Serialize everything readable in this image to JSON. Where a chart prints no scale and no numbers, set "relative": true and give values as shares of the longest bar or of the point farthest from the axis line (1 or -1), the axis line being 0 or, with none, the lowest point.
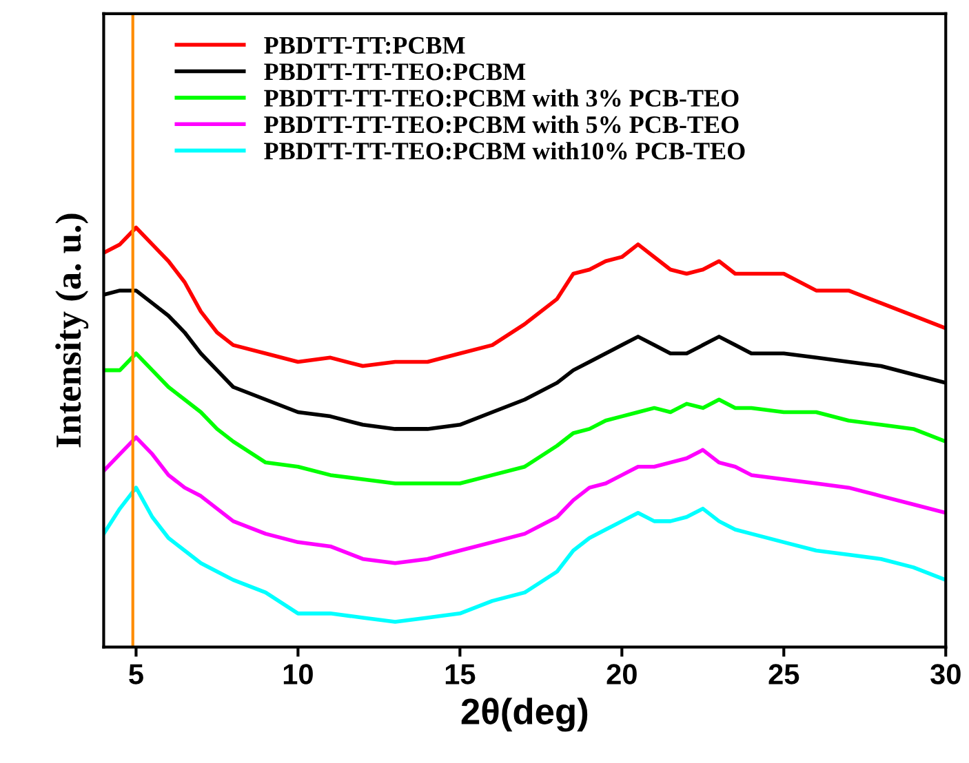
{
  "chart_data": {
    "type": "line",
    "relative": true,
    "xlabel": "2θ(deg)",
    "ylabel": "Intensity (a. u.)",
    "x": [
      4,
      4.5,
      5,
      5.5,
      6,
      6.5,
      7,
      7.5,
      8,
      9,
      10,
      11,
      12,
      13,
      14,
      15,
      16,
      17,
      18,
      18.5,
      19,
      19.5,
      20,
      20.5,
      21,
      21.5,
      22,
      22.5,
      23,
      23.5,
      24,
      25,
      26,
      27,
      28,
      29,
      30
    ],
    "xlim": [
      4,
      30
    ],
    "xticks": [
      5,
      10,
      15,
      20,
      25,
      30
    ],
    "grid": false,
    "legend": "top left",
    "line_style": "solid",
    "marker": "none",
    "ref_lines": [
      {
        "axis": "x",
        "value": 4.9,
        "color": "#ff8c00",
        "line_style": "solid"
      }
    ],
    "series": [
      {
        "name": "PBDTT-TT:PCBM",
        "color": "#ff0000",
        "values": [
          0.94,
          0.96,
          1.0,
          0.96,
          0.92,
          0.87,
          0.8,
          0.75,
          0.72,
          0.7,
          0.68,
          0.69,
          0.67,
          0.68,
          0.68,
          0.7,
          0.72,
          0.77,
          0.83,
          0.89,
          0.9,
          0.92,
          0.93,
          0.96,
          0.93,
          0.9,
          0.89,
          0.9,
          0.92,
          0.89,
          0.89,
          0.89,
          0.85,
          0.85,
          0.82,
          0.79,
          0.76
        ]
      },
      {
        "name": "PBDTT-TT-TEO:PCBM",
        "color": "#000000",
        "values": [
          0.84,
          0.85,
          0.85,
          0.82,
          0.79,
          0.75,
          0.7,
          0.66,
          0.62,
          0.59,
          0.56,
          0.55,
          0.53,
          0.52,
          0.52,
          0.53,
          0.56,
          0.59,
          0.63,
          0.66,
          0.68,
          0.7,
          0.72,
          0.74,
          0.72,
          0.7,
          0.7,
          0.72,
          0.74,
          0.72,
          0.7,
          0.7,
          0.69,
          0.68,
          0.67,
          0.65,
          0.63
        ]
      },
      {
        "name": "PBDTT-TT-TEO:PCBM with 3% PCB-TEO",
        "color": "#00ff00",
        "values": [
          0.66,
          0.66,
          0.7,
          0.66,
          0.62,
          0.59,
          0.56,
          0.52,
          0.49,
          0.44,
          0.43,
          0.41,
          0.4,
          0.39,
          0.39,
          0.39,
          0.41,
          0.43,
          0.48,
          0.51,
          0.52,
          0.54,
          0.55,
          0.56,
          0.57,
          0.56,
          0.58,
          0.57,
          0.59,
          0.57,
          0.57,
          0.56,
          0.56,
          0.54,
          0.53,
          0.52,
          0.49
        ]
      },
      {
        "name": "PBDTT-TT-TEO:PCBM with 5% PCB-TEO",
        "color": "#ff00ff",
        "values": [
          0.42,
          0.46,
          0.5,
          0.46,
          0.41,
          0.38,
          0.36,
          0.33,
          0.3,
          0.27,
          0.25,
          0.24,
          0.21,
          0.2,
          0.21,
          0.23,
          0.25,
          0.27,
          0.31,
          0.35,
          0.38,
          0.39,
          0.41,
          0.43,
          0.43,
          0.44,
          0.45,
          0.47,
          0.44,
          0.43,
          0.41,
          0.4,
          0.39,
          0.38,
          0.36,
          0.34,
          0.32
        ]
      },
      {
        "name": "PBDTT-TT-TEO:PCBM with10% PCB-TEO",
        "color": "#00ffff",
        "values": [
          0.27,
          0.33,
          0.38,
          0.31,
          0.26,
          0.23,
          0.2,
          0.18,
          0.16,
          0.13,
          0.08,
          0.08,
          0.07,
          0.06,
          0.07,
          0.08,
          0.11,
          0.13,
          0.18,
          0.23,
          0.26,
          0.28,
          0.3,
          0.32,
          0.3,
          0.3,
          0.31,
          0.33,
          0.3,
          0.28,
          0.27,
          0.25,
          0.23,
          0.22,
          0.21,
          0.19,
          0.16
        ]
      }
    ]
  }
}
